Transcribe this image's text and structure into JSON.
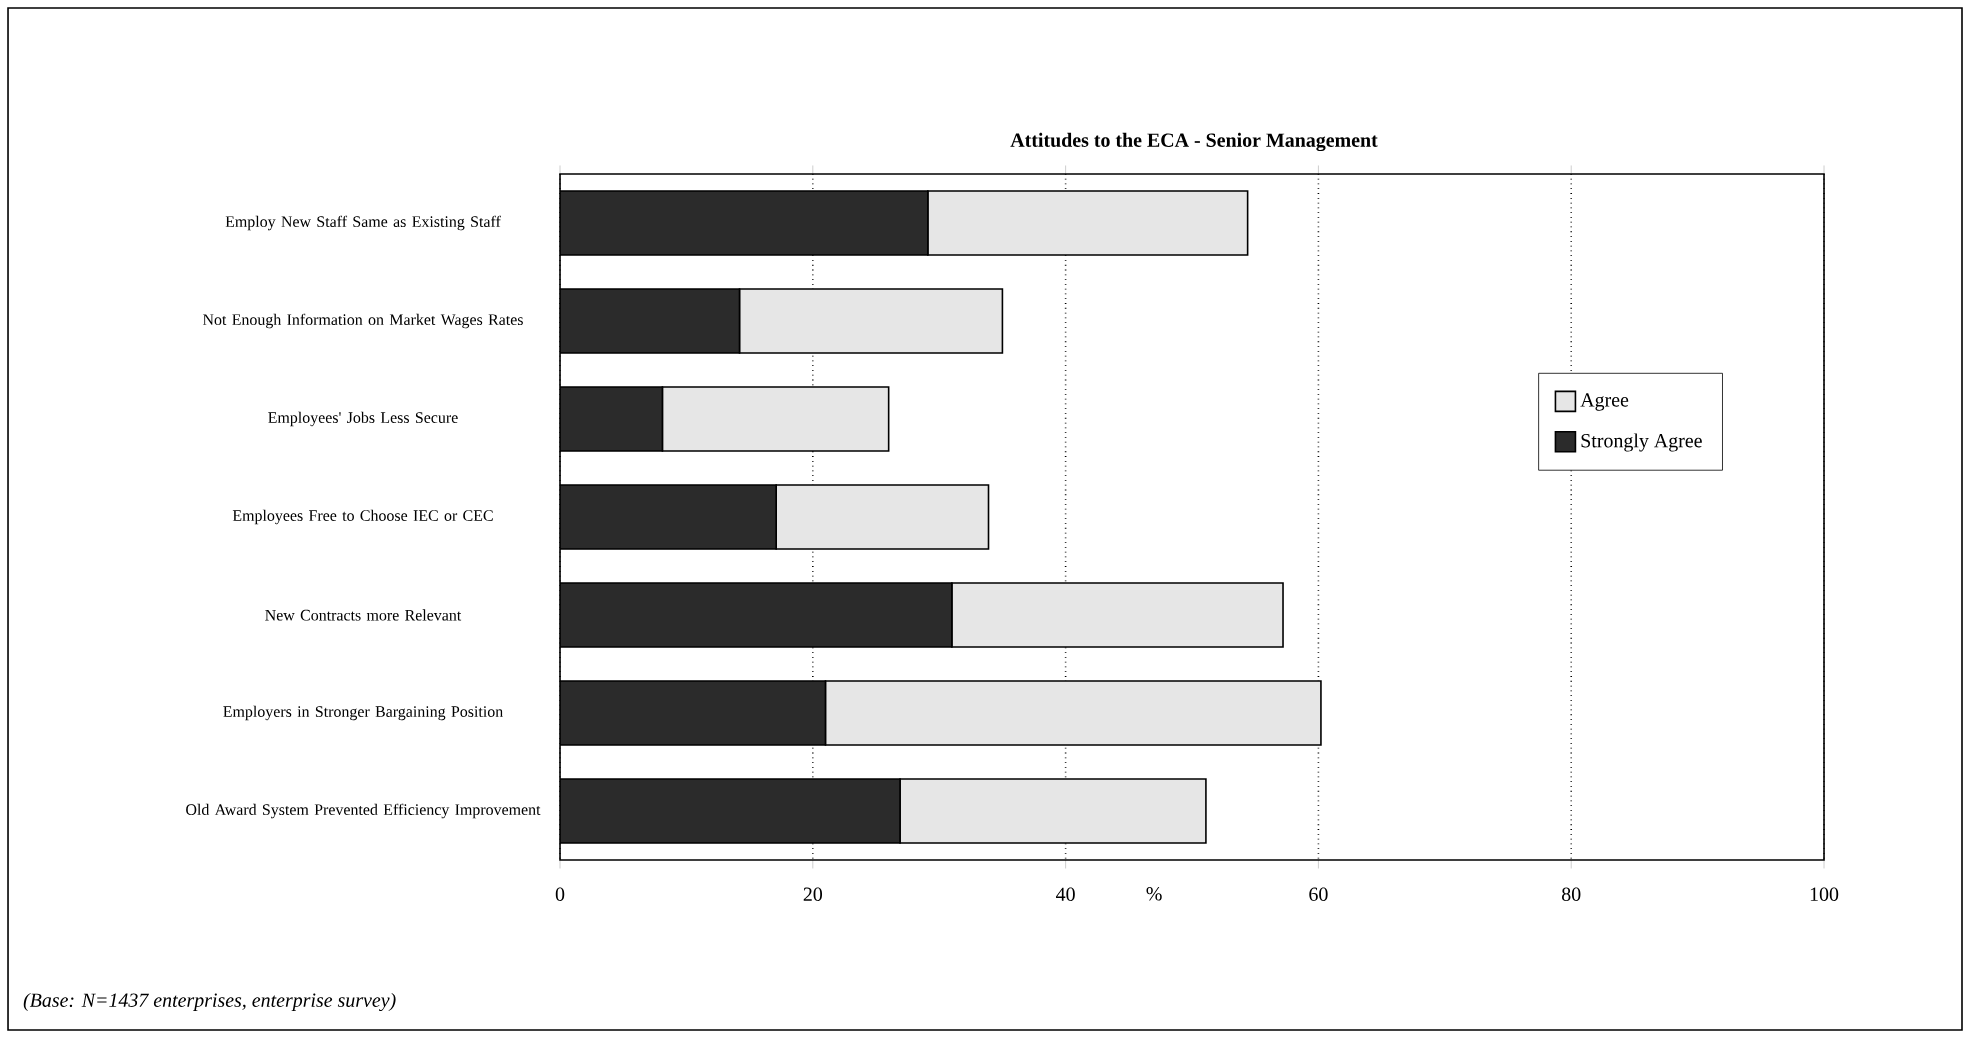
{
  "chart_data": {
    "type": "bar",
    "orientation": "horizontal",
    "stacked": true,
    "title": "Attitudes to the ECA - Senior Management",
    "categories": [
      "Employ New Staff Same as Existing Staff",
      "Not Enough Information on Market Wages Rates",
      "Employees' Jobs Less Secure",
      "Employees Free to Choose IEC or CEC",
      "New Contracts more Relevant",
      "Employers in Stronger Bargaining Position",
      "Old Award System Prevented Efficiency Improvement"
    ],
    "series": [
      {
        "name": "Strongly Agree",
        "color": "#2b2b2b",
        "values": [
          29.1,
          14.2,
          8.1,
          17.1,
          31.0,
          21.0,
          26.9
        ]
      },
      {
        "name": "Agree",
        "color": "#e6e6e6",
        "values": [
          25.3,
          20.8,
          17.9,
          16.8,
          26.2,
          39.2,
          24.2
        ]
      }
    ],
    "xlabel": "%",
    "xlim": [
      0,
      100
    ],
    "xticks": [
      0,
      20,
      40,
      60,
      80,
      100
    ],
    "grid": "x",
    "legend": "right",
    "annotations": [
      "(Base: N=1437 enterprises, enterprise survey)"
    ]
  }
}
